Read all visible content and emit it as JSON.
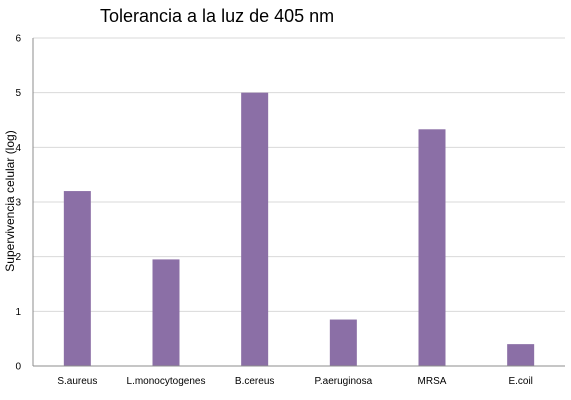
{
  "chart_data": {
    "type": "bar",
    "title": "Tolerancia a la luz de 405 nm",
    "xlabel": "",
    "ylabel": "Supervivencia celular (log)",
    "categories": [
      "S.aureus",
      "L.monocytogenes",
      "B.cereus",
      "P.aeruginosa",
      "MRSA",
      "E.coil"
    ],
    "values": [
      3.2,
      1.95,
      5.0,
      0.85,
      4.33,
      0.4
    ],
    "ylim": [
      0,
      6
    ],
    "yticks": [
      "0",
      "1",
      "2",
      "3",
      "4",
      "5",
      "6"
    ],
    "grid": true,
    "legend": "none",
    "bar_color": "#8b6fa6"
  }
}
